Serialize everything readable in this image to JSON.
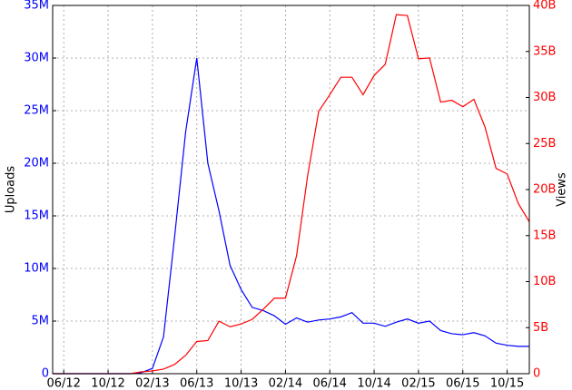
{
  "chart_data": {
    "type": "line",
    "x": [
      -1,
      0,
      1,
      2,
      3,
      4,
      5,
      6,
      7,
      8,
      9,
      10,
      11,
      12,
      13,
      14,
      15,
      16,
      17,
      18,
      19,
      20,
      21,
      22,
      23,
      24,
      25,
      26,
      27,
      28,
      29,
      30,
      31,
      32,
      33,
      34,
      35,
      36,
      37,
      38,
      39,
      40,
      41,
      42
    ],
    "xlim": [
      -1,
      42
    ],
    "xticks": [
      {
        "value": 0,
        "label": "06/12"
      },
      {
        "value": 4,
        "label": "10/12"
      },
      {
        "value": 8,
        "label": "02/13"
      },
      {
        "value": 12,
        "label": "06/13"
      },
      {
        "value": 16,
        "label": "10/13"
      },
      {
        "value": 20,
        "label": "02/14"
      },
      {
        "value": 24,
        "label": "06/14"
      },
      {
        "value": 28,
        "label": "10/14"
      },
      {
        "value": 32,
        "label": "02/15"
      },
      {
        "value": 36,
        "label": "06/15"
      },
      {
        "value": 40,
        "label": "10/15"
      }
    ],
    "ylabel": "Uploads",
    "y2label": "Views",
    "ylim": [
      0,
      35
    ],
    "yticks": [
      0,
      {
        "value": 5,
        "label": "5M"
      },
      {
        "value": 10,
        "label": "10M"
      },
      {
        "value": 15,
        "label": "15M"
      },
      {
        "value": 20,
        "label": "20M"
      },
      {
        "value": 25,
        "label": "25M"
      },
      {
        "value": 30,
        "label": "30M"
      },
      {
        "value": 35,
        "label": "35M"
      }
    ],
    "y2lim": [
      0,
      40
    ],
    "y2ticks": [
      0,
      {
        "value": 5,
        "label": "5B"
      },
      {
        "value": 10,
        "label": "10B"
      },
      {
        "value": 15,
        "label": "15B"
      },
      {
        "value": 20,
        "label": "20B"
      },
      {
        "value": 25,
        "label": "25B"
      },
      {
        "value": 30,
        "label": "30B"
      },
      {
        "value": 35,
        "label": "35B"
      },
      {
        "value": 40,
        "label": "40B"
      }
    ],
    "grid": true,
    "series": [
      {
        "name": "Uploads",
        "color": "#0000ff",
        "axis": "y",
        "values": [
          0,
          0,
          0,
          0,
          0,
          0,
          0,
          0,
          0.1,
          0.5,
          3.5,
          13,
          23,
          30,
          20,
          15.5,
          10.3,
          8,
          6.3,
          6,
          5.5,
          4.7,
          5.3,
          4.9,
          5.1,
          5.2,
          5.4,
          5.8,
          4.8,
          4.8,
          4.5,
          4.9,
          5.2,
          4.8,
          5.0,
          4.1,
          3.8,
          3.7,
          3.9,
          3.6,
          2.9,
          2.7,
          2.6,
          2.6
        ]
      },
      {
        "name": "Views",
        "color": "#ff0000",
        "axis": "y2",
        "values": [
          0,
          0,
          0,
          0,
          0,
          0,
          0,
          0,
          0.2,
          0.3,
          0.5,
          1.0,
          2.0,
          3.5,
          3.6,
          5.7,
          5.1,
          5.4,
          5.9,
          7.0,
          8.2,
          8.2,
          12.8,
          21.5,
          28.5,
          30.3,
          32.2,
          32.2,
          30.3,
          32.4,
          33.6,
          39.0,
          38.9,
          34.2,
          34.3,
          29.5,
          29.7,
          29.0,
          29.8,
          26.8,
          22.3,
          21.7,
          18.5,
          16.5
        ]
      }
    ]
  }
}
